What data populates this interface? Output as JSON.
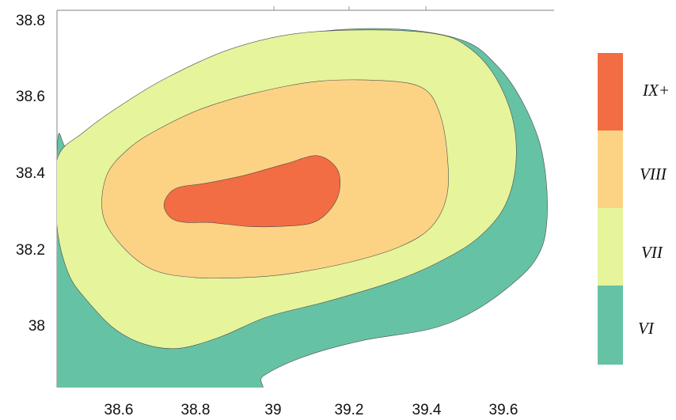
{
  "chart_data": {
    "type": "contour",
    "title": "",
    "xlabel": "",
    "ylabel": "",
    "xlim": [
      38.43,
      39.73
    ],
    "ylim": [
      37.86,
      38.82
    ],
    "x_ticks": [
      "38.6",
      "38.8",
      "39",
      "39.2",
      "39.4",
      "39.6"
    ],
    "y_ticks": [
      "38",
      "38.2",
      "38.4",
      "38.6",
      "38.8"
    ],
    "legend": [
      {
        "label": "IX+",
        "color": "#f26d43"
      },
      {
        "label": "VIII",
        "color": "#fcd385"
      },
      {
        "label": "VII",
        "color": "#e6f49c"
      },
      {
        "label": "VI",
        "color": "#66c2a4"
      }
    ],
    "regions": [
      {
        "level": "VI",
        "color": "#66c2a4",
        "outline": [
          [
            38.43,
            37.84
          ],
          [
            38.43,
            38.46
          ],
          [
            38.46,
            38.47
          ],
          [
            38.55,
            38.52
          ],
          [
            38.63,
            38.56
          ],
          [
            38.79,
            38.65
          ],
          [
            38.98,
            38.74
          ],
          [
            39.16,
            38.77
          ],
          [
            39.35,
            38.77
          ],
          [
            39.5,
            38.74
          ],
          [
            39.58,
            38.68
          ],
          [
            39.64,
            38.6
          ],
          [
            39.69,
            38.49
          ],
          [
            39.71,
            38.38
          ],
          [
            39.71,
            38.27
          ],
          [
            39.69,
            38.2
          ],
          [
            39.64,
            38.14
          ],
          [
            39.53,
            38.06
          ],
          [
            39.41,
            38.01
          ],
          [
            39.23,
            37.98
          ],
          [
            39.08,
            37.94
          ],
          [
            38.97,
            37.89
          ],
          [
            38.92,
            37.84
          ]
        ]
      },
      {
        "level": "VII",
        "color": "#e6f49c",
        "outline": [
          [
            38.5,
            38.36
          ],
          [
            38.55,
            38.32
          ],
          [
            38.63,
            38.25
          ],
          [
            38.71,
            38.16
          ],
          [
            38.8,
            38.14
          ],
          [
            38.88,
            38.13
          ],
          [
            38.98,
            38.14
          ],
          [
            39.12,
            38.17
          ],
          [
            39.26,
            38.21
          ],
          [
            39.35,
            38.26
          ],
          [
            39.4,
            38.33
          ],
          [
            39.41,
            38.41
          ],
          [
            39.41,
            38.52
          ],
          [
            39.4,
            38.61
          ],
          [
            39.33,
            38.65
          ],
          [
            39.17,
            38.65
          ],
          [
            39.04,
            38.63
          ],
          [
            38.91,
            38.57
          ],
          [
            38.75,
            38.48
          ],
          [
            38.63,
            38.41
          ]
        ]
      },
      {
        "level": "VIII",
        "color": "#fcd385",
        "outline": [
          [
            38.71,
            38.32
          ],
          [
            38.72,
            38.35
          ],
          [
            38.75,
            38.37
          ],
          [
            38.82,
            38.38
          ],
          [
            38.92,
            38.4
          ],
          [
            39.03,
            38.43
          ],
          [
            39.11,
            38.45
          ],
          [
            39.16,
            38.42
          ],
          [
            39.17,
            38.37
          ],
          [
            39.15,
            38.32
          ],
          [
            39.1,
            38.28
          ],
          [
            39.01,
            38.27
          ],
          [
            38.93,
            38.27
          ],
          [
            38.83,
            38.28
          ],
          [
            38.77,
            38.28
          ],
          [
            38.73,
            38.29
          ]
        ]
      },
      {
        "level": "IX+",
        "color": "#f26d43",
        "outline": [
          [
            38.71,
            38.32
          ],
          [
            38.72,
            38.35
          ],
          [
            38.75,
            38.37
          ],
          [
            38.82,
            38.38
          ],
          [
            38.92,
            38.4
          ],
          [
            39.03,
            38.43
          ],
          [
            39.11,
            38.45
          ],
          [
            39.16,
            38.42
          ],
          [
            39.17,
            38.37
          ],
          [
            39.15,
            38.32
          ],
          [
            39.1,
            38.28
          ],
          [
            39.01,
            38.27
          ],
          [
            38.93,
            38.27
          ],
          [
            38.83,
            38.28
          ],
          [
            38.77,
            38.28
          ],
          [
            38.73,
            38.29
          ]
        ]
      }
    ]
  }
}
